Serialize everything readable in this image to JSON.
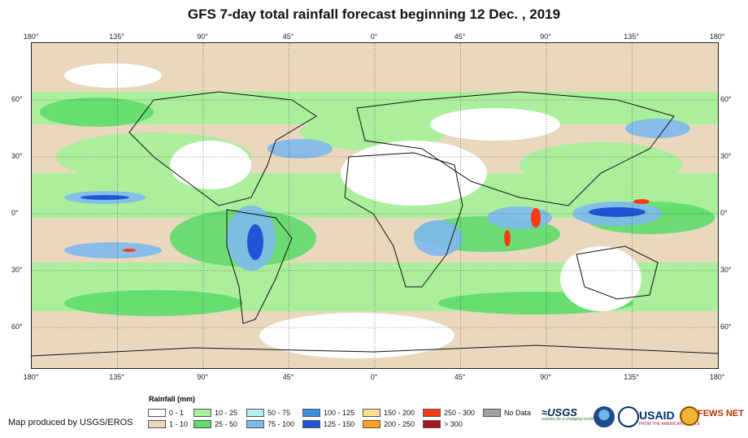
{
  "title": "GFS 7-day total rainfall forecast beginning 12 Dec. , 2019",
  "axes": {
    "lon_labels": [
      "180°",
      "135°",
      "90°",
      "45°",
      "0°",
      "45°",
      "90°",
      "135°",
      "180°"
    ],
    "lat_labels": [
      "60°",
      "30°",
      "0°",
      "30°",
      "60°"
    ]
  },
  "legend": {
    "title": "Rainfall (mm)",
    "items": [
      {
        "label": "0 - 1",
        "color": "#ffffff"
      },
      {
        "label": "1 - 10",
        "color": "#e9d8bd"
      },
      {
        "label": "10 - 25",
        "color": "#a8f09a"
      },
      {
        "label": "25 - 50",
        "color": "#5fdc6b"
      },
      {
        "label": "50 - 75",
        "color": "#b6ecf5"
      },
      {
        "label": "75 - 100",
        "color": "#7fb9ee"
      },
      {
        "label": "100 - 125",
        "color": "#3f8fe6"
      },
      {
        "label": "125 - 150",
        "color": "#1f55d6"
      },
      {
        "label": "150 - 200",
        "color": "#ffe08a"
      },
      {
        "label": "200 - 250",
        "color": "#ffa020"
      },
      {
        "label": "250 - 300",
        "color": "#ff3a10"
      },
      {
        "label": "> 300",
        "color": "#a8131b"
      },
      {
        "label": "No Data",
        "color": "#a0a0a0"
      }
    ]
  },
  "credit": "Map produced by USGS/EROS",
  "logos": {
    "usgs": "≈USGS",
    "usgs_tagline": "science for a changing world",
    "usaid": "USAID",
    "usaid_tagline": "FROM THE AMERICAN PEOPLE",
    "fews": "FEWS NET"
  }
}
